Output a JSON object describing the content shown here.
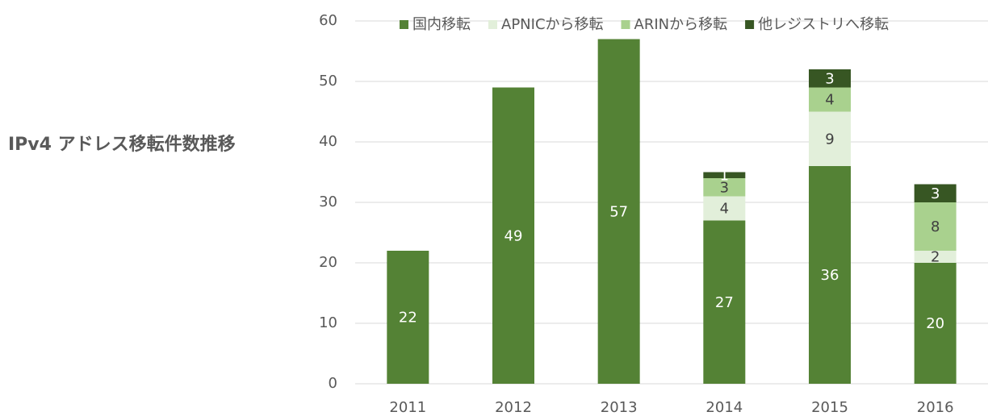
{
  "chart_data": {
    "type": "stacked_bar",
    "title": "IPv4 アドレス移転件数推移",
    "categories": [
      "2011",
      "2012",
      "2013",
      "2014",
      "2015",
      "2016"
    ],
    "series": [
      {
        "name": "国内移転",
        "color": "#548235",
        "values": [
          22,
          49,
          57,
          27,
          36,
          20
        ]
      },
      {
        "name": "APNICから移転",
        "color": "#e2efda",
        "values": [
          null,
          null,
          null,
          4,
          9,
          2
        ]
      },
      {
        "name": "ARINから移転",
        "color": "#a9d18e",
        "values": [
          null,
          null,
          null,
          3,
          4,
          8
        ]
      },
      {
        "name": "他レジストリへ移転",
        "color": "#375623",
        "values": [
          null,
          null,
          null,
          1,
          3,
          3
        ]
      }
    ],
    "ylim": [
      0,
      60
    ],
    "yticks": [
      0,
      10,
      20,
      30,
      40,
      50,
      60
    ],
    "grid": true,
    "legend": "top"
  }
}
